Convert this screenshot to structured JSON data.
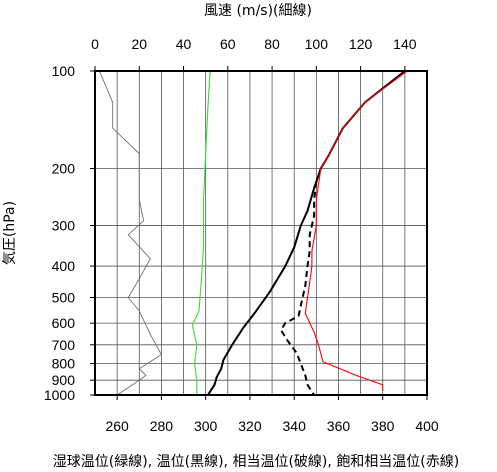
{
  "chart_data": {
    "type": "line",
    "top_axis": {
      "label": "風速 (m/s)(細線)",
      "range": [
        0,
        150
      ],
      "ticks": [
        0,
        20,
        40,
        60,
        80,
        100,
        120,
        140
      ],
      "tick_labels": [
        "0",
        "20",
        "40",
        "60",
        "80",
        "100",
        "120",
        "140"
      ]
    },
    "bottom_axis": {
      "label": "湿球温位(緑線), 温位(黒線), 相当温位(破線), 飽和相当温位(赤線)",
      "range": [
        250,
        400
      ],
      "ticks": [
        260,
        280,
        300,
        320,
        340,
        360,
        380,
        400
      ],
      "tick_labels": [
        "260",
        "280",
        "300",
        "320",
        "340",
        "360",
        "380",
        "400"
      ]
    },
    "left_axis": {
      "label": "気圧(hPa)",
      "scale": "log",
      "range": [
        1000,
        100
      ],
      "ticks": [
        100,
        200,
        300,
        400,
        500,
        600,
        700,
        800,
        900,
        1000
      ],
      "tick_labels": [
        "100",
        "200",
        "300",
        "400",
        "500",
        "600",
        "700",
        "800",
        "900",
        "1000"
      ]
    },
    "grid": true,
    "series": [
      {
        "name": "風速",
        "axis": "top",
        "color": "#707070",
        "style": "thin",
        "points": [
          [
            2,
            100
          ],
          [
            8,
            125
          ],
          [
            8,
            150
          ],
          [
            20,
            180
          ],
          [
            20,
            200
          ],
          [
            20,
            250
          ],
          [
            22,
            290
          ],
          [
            15,
            320
          ],
          [
            25,
            380
          ],
          [
            19,
            450
          ],
          [
            15,
            500
          ],
          [
            20,
            550
          ],
          [
            25,
            650
          ],
          [
            30,
            750
          ],
          [
            20,
            830
          ],
          [
            23,
            870
          ],
          [
            18,
            920
          ],
          [
            10,
            1000
          ]
        ]
      },
      {
        "name": "湿球温位",
        "axis": "bottom",
        "color": "#33dd33",
        "style": "solid",
        "points": [
          [
            302,
            100
          ],
          [
            301,
            130
          ],
          [
            300,
            180
          ],
          [
            299,
            250
          ],
          [
            299,
            350
          ],
          [
            298,
            450
          ],
          [
            297,
            550
          ],
          [
            294,
            610
          ],
          [
            296,
            700
          ],
          [
            295,
            800
          ],
          [
            296,
            900
          ],
          [
            296,
            1000
          ]
        ]
      },
      {
        "name": "温位",
        "axis": "bottom",
        "color": "#000000",
        "style": "solid",
        "points": [
          [
            390,
            100
          ],
          [
            372,
            125
          ],
          [
            362,
            150
          ],
          [
            356,
            180
          ],
          [
            352,
            200
          ],
          [
            349,
            230
          ],
          [
            346,
            270
          ],
          [
            343,
            300
          ],
          [
            340,
            350
          ],
          [
            336,
            400
          ],
          [
            329,
            480
          ],
          [
            322,
            560
          ],
          [
            317,
            620
          ],
          [
            312,
            700
          ],
          [
            308,
            780
          ],
          [
            307,
            830
          ],
          [
            305,
            880
          ],
          [
            304,
            930
          ],
          [
            301,
            1000
          ]
        ]
      },
      {
        "name": "相当温位",
        "axis": "bottom",
        "color": "#000000",
        "style": "dashed",
        "points": [
          [
            350,
            220
          ],
          [
            349,
            250
          ],
          [
            349,
            280
          ],
          [
            347,
            320
          ],
          [
            347,
            360
          ],
          [
            346,
            400
          ],
          [
            345,
            460
          ],
          [
            343,
            530
          ],
          [
            342,
            570
          ],
          [
            336,
            600
          ],
          [
            334,
            630
          ],
          [
            337,
            680
          ],
          [
            341,
            740
          ],
          [
            343,
            800
          ],
          [
            345,
            870
          ],
          [
            346,
            930
          ],
          [
            349,
            1000
          ]
        ]
      },
      {
        "name": "飽和相当温位",
        "axis": "bottom",
        "color": "#ff0000",
        "style": "solid",
        "points": [
          [
            391,
            100
          ],
          [
            372,
            125
          ],
          [
            362,
            150
          ],
          [
            356,
            180
          ],
          [
            352,
            200
          ],
          [
            350,
            250
          ],
          [
            350,
            300
          ],
          [
            348,
            360
          ],
          [
            348,
            400
          ],
          [
            347,
            450
          ],
          [
            346,
            500
          ],
          [
            345,
            560
          ],
          [
            349,
            640
          ],
          [
            351,
            700
          ],
          [
            353,
            790
          ],
          [
            368,
            870
          ],
          [
            380,
            930
          ],
          [
            380,
            970
          ]
        ]
      }
    ]
  }
}
